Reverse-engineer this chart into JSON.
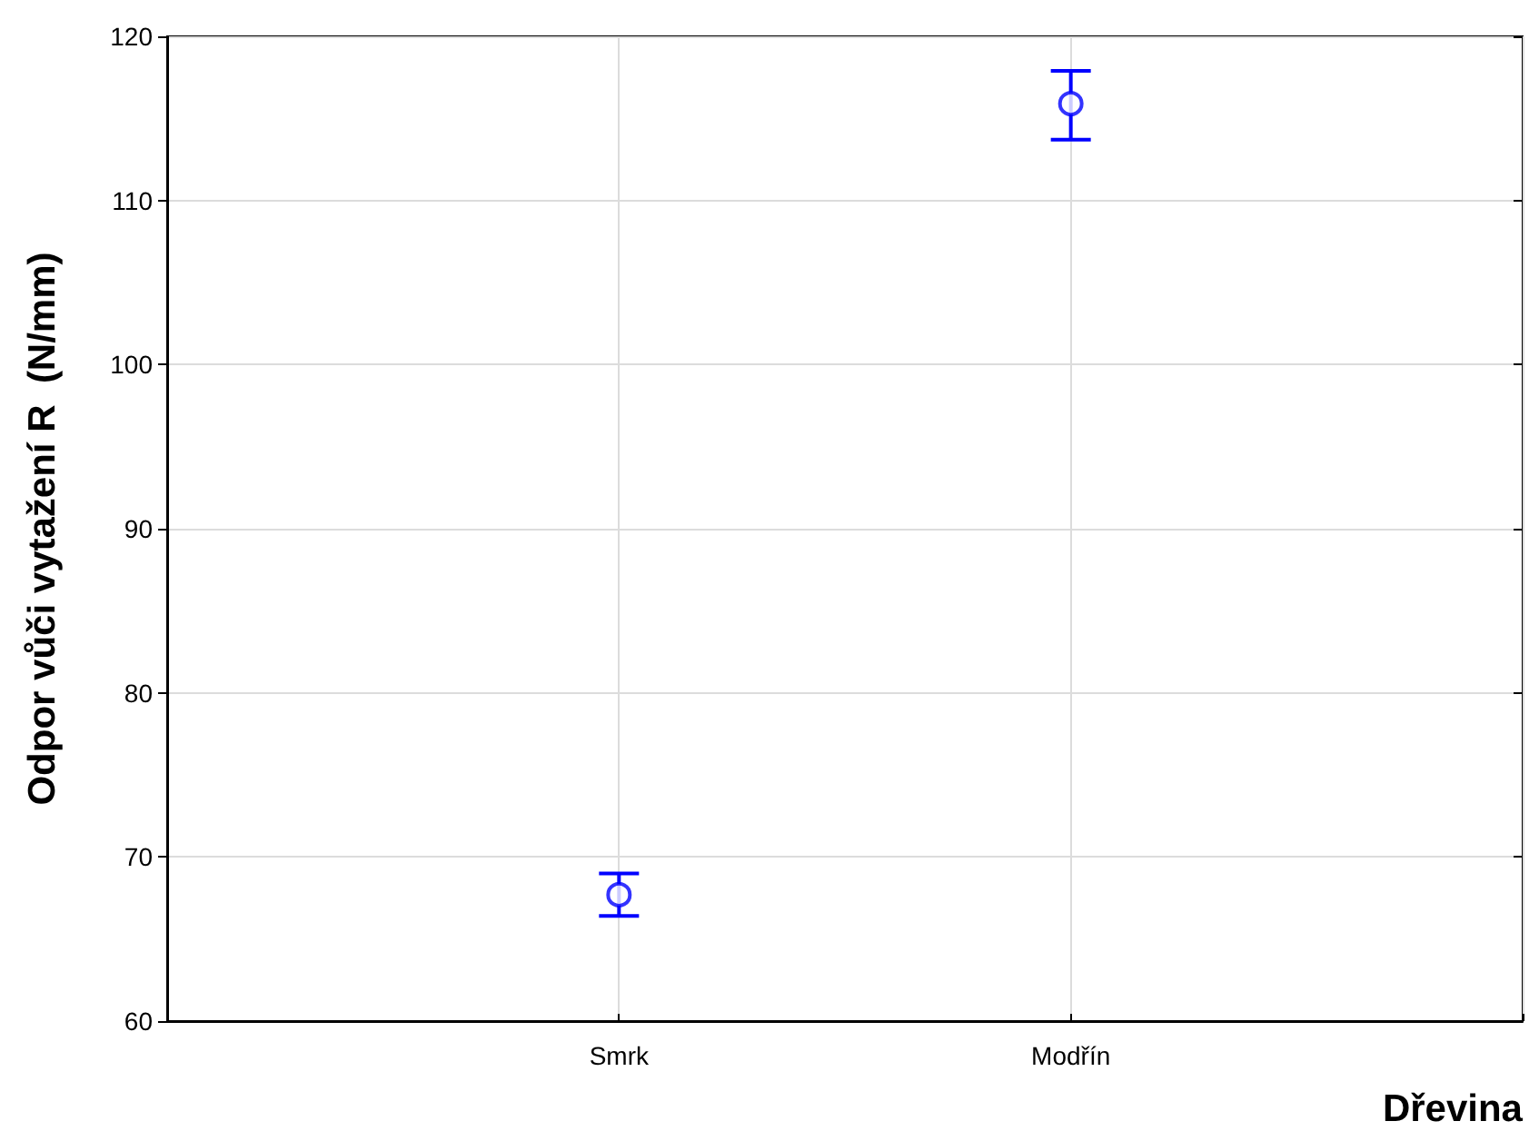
{
  "chart_data": {
    "type": "scatter",
    "xlabel": "Dřevina",
    "ylabel": "Odpor vůči vytažení R  (N/mm)",
    "categories": [
      "Smrk",
      "Modřín"
    ],
    "series": [
      {
        "color": "#0000ff",
        "values": [
          67.7,
          115.9
        ],
        "errors": [
          [
            66.4,
            69.0
          ],
          [
            113.7,
            117.9
          ]
        ]
      }
    ],
    "ylim": [
      60,
      120
    ],
    "yticks": [
      60,
      70,
      80,
      90,
      100,
      110,
      120
    ],
    "grid": true,
    "marker": "circle"
  }
}
